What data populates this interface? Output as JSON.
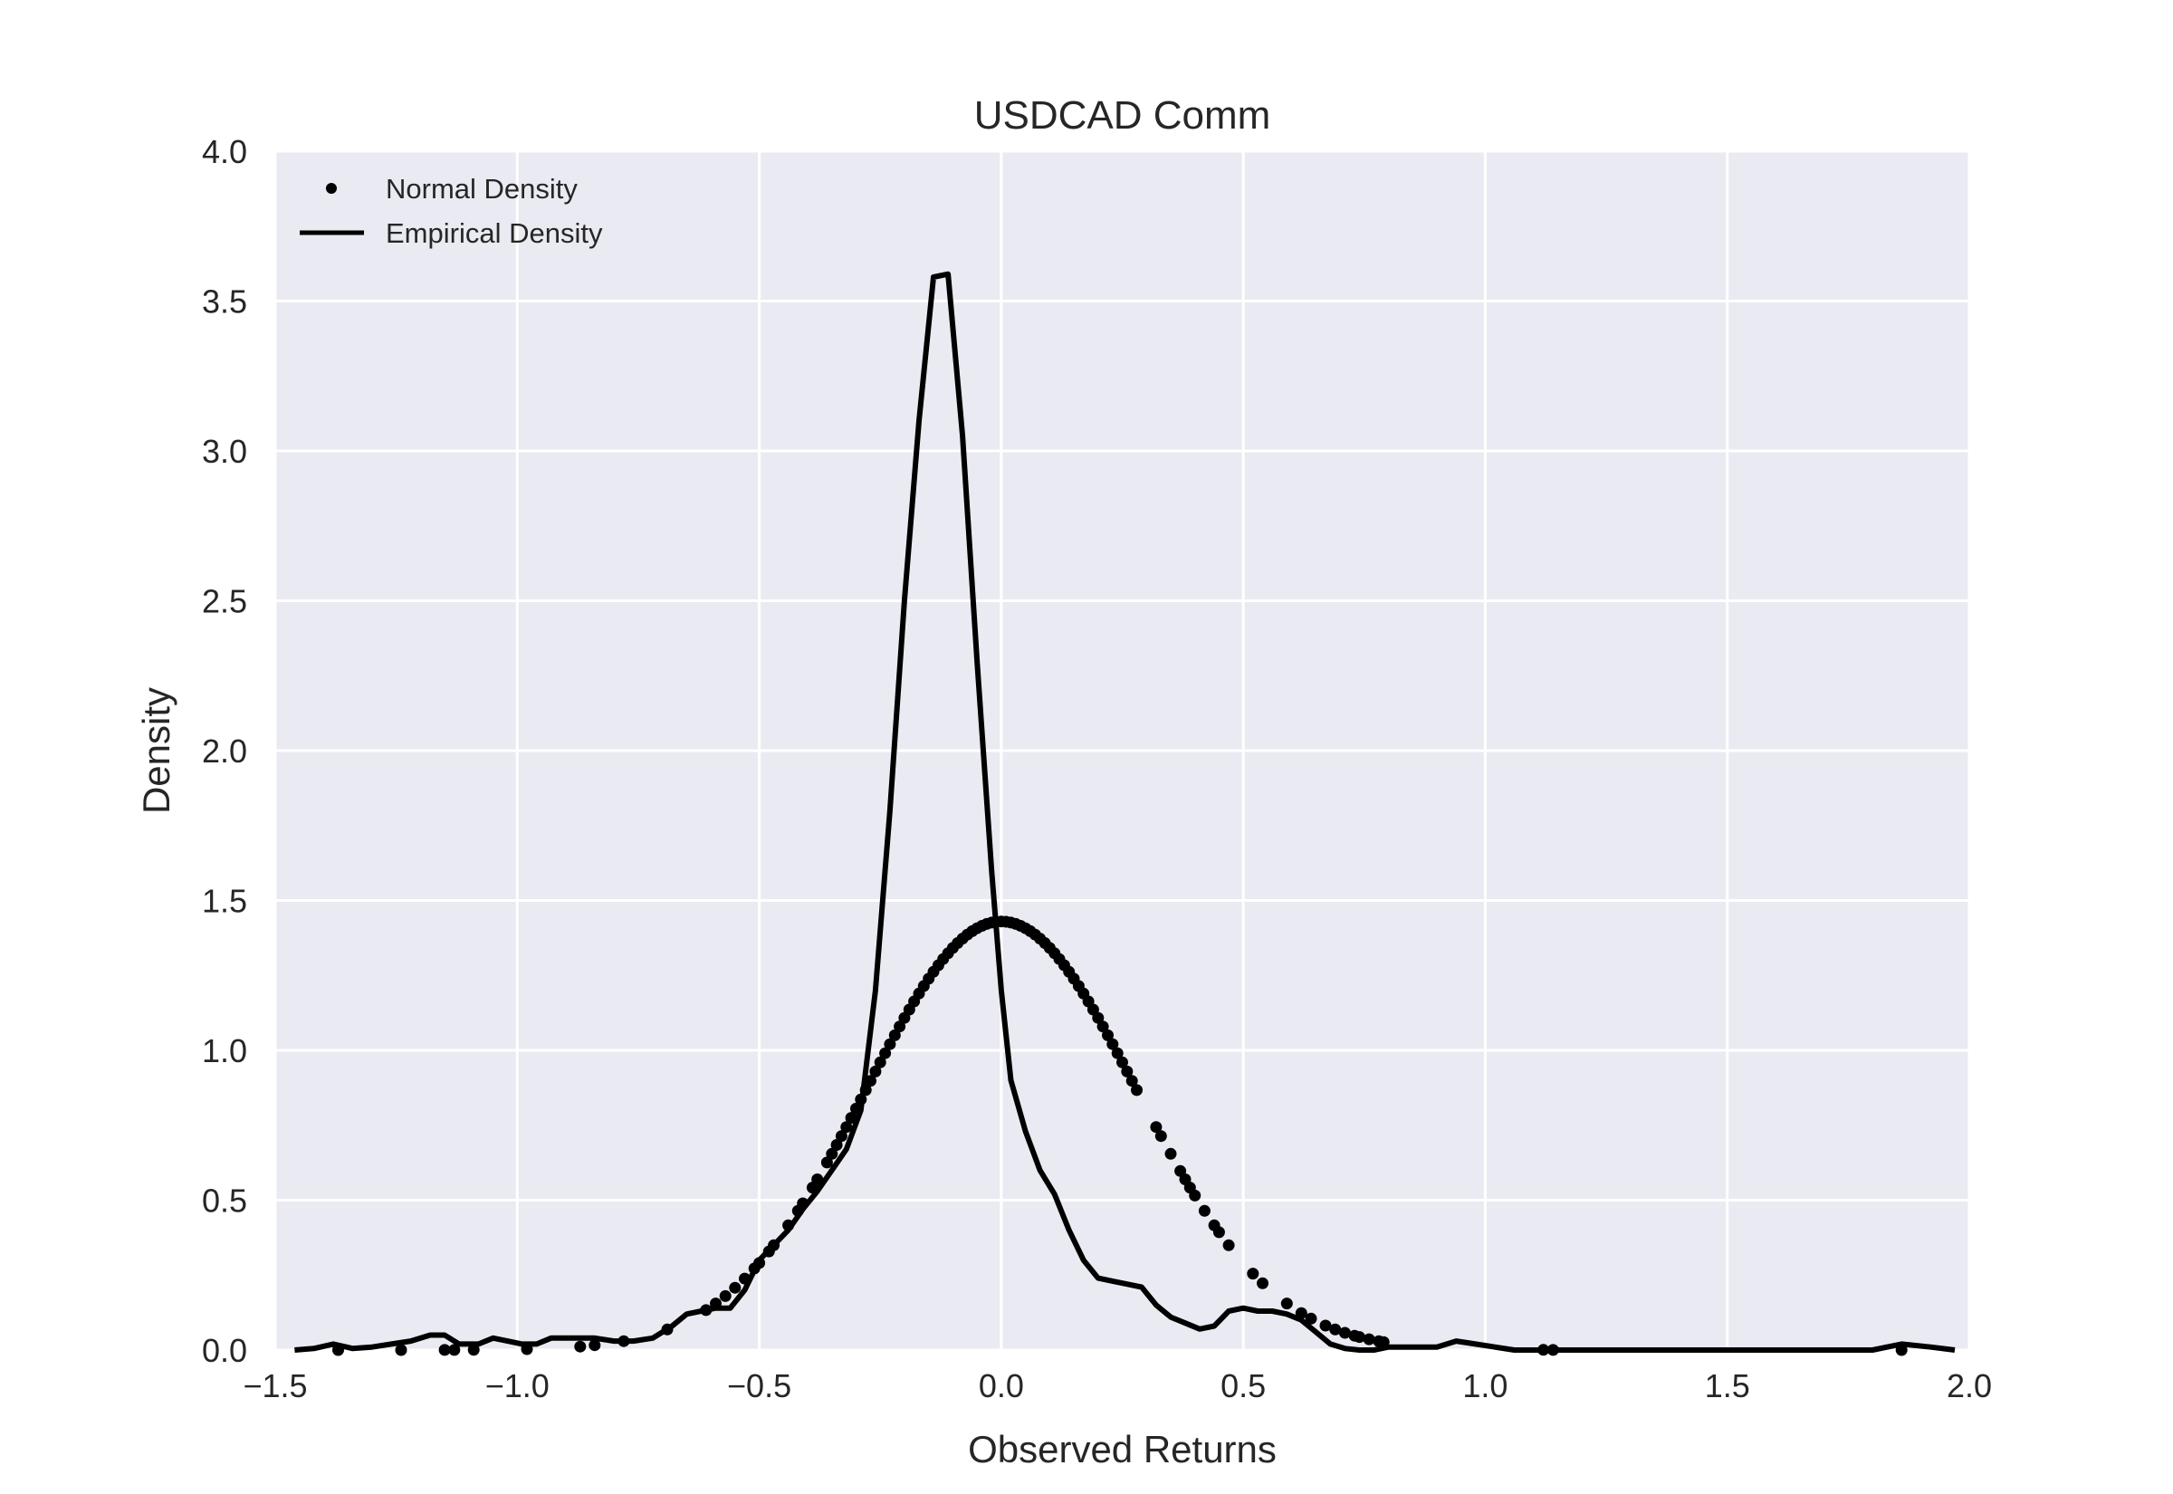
{
  "chart_data": {
    "type": "line",
    "title": "USDCAD Comm",
    "xlabel": "Observed Returns",
    "ylabel": "Density",
    "xlim": [
      -1.5,
      2.0
    ],
    "ylim": [
      0.0,
      4.0
    ],
    "xticks": [
      "−1.5",
      "−1.0",
      "−0.5",
      "0.0",
      "0.5",
      "1.0",
      "1.5",
      "2.0"
    ],
    "xtick_values": [
      -1.5,
      -1.0,
      -0.5,
      0.0,
      0.5,
      1.0,
      1.5,
      2.0
    ],
    "yticks": [
      "0.0",
      "0.5",
      "1.0",
      "1.5",
      "2.0",
      "2.5",
      "3.0",
      "3.5",
      "4.0"
    ],
    "ytick_values": [
      0.0,
      0.5,
      1.0,
      1.5,
      2.0,
      2.5,
      3.0,
      3.5,
      4.0
    ],
    "grid": true,
    "legend_position": "top-left",
    "colors": {
      "background": "#eaeaf2",
      "grid": "#ffffff",
      "series": "#000000",
      "text": "#262626"
    },
    "series": [
      {
        "name": "Normal Density",
        "style": "dots",
        "normal": {
          "mean": 0.0,
          "sd": 0.28,
          "peak": 1.43
        },
        "x": [
          -1.37,
          -1.24,
          -1.15,
          -1.13,
          -1.09,
          -0.98,
          -0.87,
          -0.84,
          -0.78,
          -0.69,
          -0.61,
          -0.59,
          -0.57,
          -0.55,
          -0.53,
          -0.51,
          -0.5,
          -0.48,
          -0.47,
          -0.44,
          -0.42,
          -0.41,
          -0.39,
          -0.38,
          -0.36,
          -0.35,
          -0.34,
          -0.33,
          -0.32,
          -0.31,
          -0.3,
          -0.29,
          -0.28,
          -0.27,
          -0.26,
          -0.25,
          -0.24,
          -0.23,
          -0.22,
          -0.21,
          -0.2,
          -0.19,
          -0.18,
          -0.17,
          -0.16,
          -0.15,
          -0.14,
          -0.13,
          -0.12,
          -0.11,
          -0.1,
          -0.09,
          -0.08,
          -0.07,
          -0.06,
          -0.05,
          -0.04,
          -0.03,
          -0.02,
          -0.01,
          0.0,
          0.01,
          0.02,
          0.03,
          0.04,
          0.05,
          0.06,
          0.07,
          0.08,
          0.09,
          0.1,
          0.11,
          0.12,
          0.13,
          0.14,
          0.15,
          0.16,
          0.17,
          0.18,
          0.19,
          0.2,
          0.21,
          0.22,
          0.23,
          0.24,
          0.25,
          0.26,
          0.27,
          0.28,
          0.32,
          0.33,
          0.35,
          0.37,
          0.38,
          0.39,
          0.4,
          0.42,
          0.44,
          0.45,
          0.47,
          0.52,
          0.54,
          0.59,
          0.62,
          0.64,
          0.67,
          0.69,
          0.71,
          0.73,
          0.74,
          0.76,
          0.78,
          0.79,
          1.12,
          1.14,
          1.86
        ]
      },
      {
        "name": "Empirical Density",
        "style": "line",
        "x": [
          -1.46,
          -1.42,
          -1.38,
          -1.34,
          -1.3,
          -1.26,
          -1.22,
          -1.18,
          -1.15,
          -1.12,
          -1.08,
          -1.05,
          -1.02,
          -0.99,
          -0.96,
          -0.93,
          -0.9,
          -0.87,
          -0.84,
          -0.8,
          -0.76,
          -0.72,
          -0.68,
          -0.65,
          -0.62,
          -0.59,
          -0.56,
          -0.53,
          -0.5,
          -0.47,
          -0.44,
          -0.41,
          -0.38,
          -0.35,
          -0.32,
          -0.29,
          -0.26,
          -0.23,
          -0.2,
          -0.17,
          -0.14,
          -0.11,
          -0.08,
          -0.05,
          -0.02,
          0.0,
          0.02,
          0.05,
          0.08,
          0.11,
          0.14,
          0.17,
          0.2,
          0.23,
          0.26,
          0.29,
          0.32,
          0.35,
          0.38,
          0.41,
          0.44,
          0.47,
          0.5,
          0.53,
          0.56,
          0.59,
          0.62,
          0.65,
          0.68,
          0.71,
          0.74,
          0.77,
          0.8,
          0.83,
          0.86,
          0.9,
          0.94,
          0.98,
          1.02,
          1.06,
          1.1,
          1.13,
          1.16,
          1.2,
          1.3,
          1.4,
          1.5,
          1.6,
          1.7,
          1.8,
          1.86,
          1.92,
          1.97
        ],
        "y": [
          0.0,
          0.005,
          0.02,
          0.005,
          0.01,
          0.02,
          0.03,
          0.05,
          0.05,
          0.02,
          0.02,
          0.04,
          0.03,
          0.02,
          0.02,
          0.04,
          0.04,
          0.04,
          0.04,
          0.03,
          0.03,
          0.04,
          0.08,
          0.12,
          0.13,
          0.14,
          0.14,
          0.2,
          0.3,
          0.35,
          0.4,
          0.47,
          0.53,
          0.6,
          0.67,
          0.8,
          1.2,
          1.8,
          2.5,
          3.1,
          3.58,
          3.59,
          3.05,
          2.3,
          1.6,
          1.2,
          0.9,
          0.73,
          0.6,
          0.52,
          0.4,
          0.3,
          0.24,
          0.23,
          0.22,
          0.21,
          0.15,
          0.11,
          0.09,
          0.07,
          0.08,
          0.13,
          0.14,
          0.13,
          0.13,
          0.12,
          0.1,
          0.06,
          0.02,
          0.005,
          0.0,
          0.0,
          0.01,
          0.01,
          0.01,
          0.01,
          0.03,
          0.02,
          0.01,
          0.0,
          0.0,
          0.0,
          0.0,
          0.0,
          0.0,
          0.0,
          0.0,
          0.0,
          0.0,
          0.0,
          0.02,
          0.01,
          0.0
        ]
      }
    ]
  }
}
